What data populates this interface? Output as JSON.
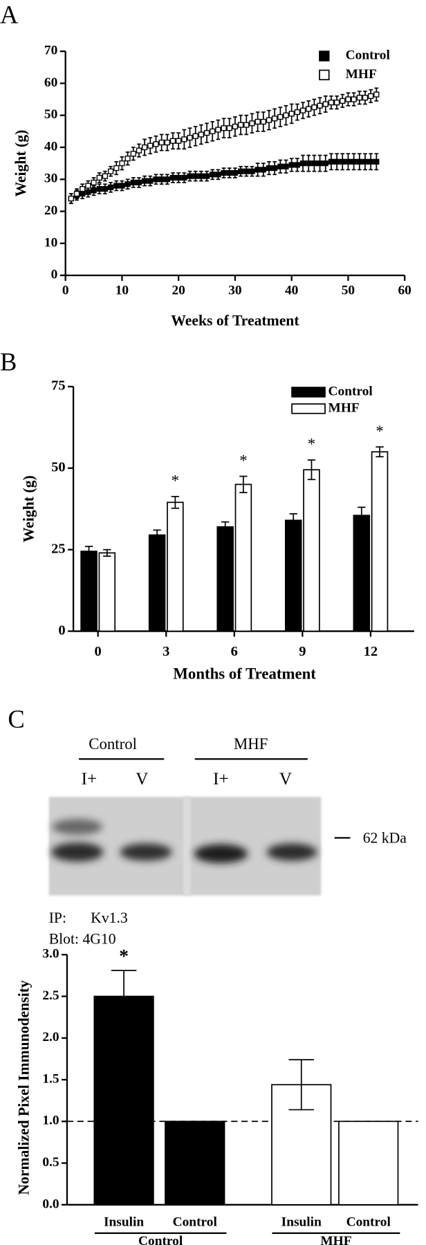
{
  "chart_data": [
    {
      "type": "scatter",
      "panel": "A",
      "x_label": "Weeks of Treatment",
      "y_label": "Weight (g)",
      "xlim": [
        0,
        60
      ],
      "xticks": [
        0,
        10,
        20,
        30,
        40,
        50,
        60
      ],
      "ylim": [
        0,
        70
      ],
      "yticks": [
        0,
        10,
        20,
        30,
        40,
        50,
        60,
        70
      ],
      "x": [
        1,
        2,
        3,
        4,
        5,
        6,
        7,
        8,
        9,
        10,
        11,
        12,
        13,
        14,
        15,
        16,
        17,
        18,
        19,
        20,
        21,
        22,
        23,
        24,
        25,
        26,
        27,
        28,
        29,
        30,
        31,
        32,
        33,
        34,
        35,
        36,
        37,
        38,
        39,
        40,
        41,
        42,
        43,
        44,
        45,
        46,
        47,
        48,
        49,
        50,
        51,
        52,
        53,
        54,
        55
      ],
      "series": [
        {
          "name": "Control",
          "color": "#000000",
          "marker_fill": "#000000",
          "values": [
            24,
            25,
            25.5,
            26,
            26.5,
            27,
            27,
            27.5,
            28,
            28,
            28.5,
            29,
            29,
            29.5,
            29.5,
            30,
            30,
            30,
            30.5,
            30.5,
            30.5,
            31,
            31,
            31,
            31,
            31.5,
            31.5,
            32,
            32,
            32,
            32.5,
            32.5,
            32.5,
            33,
            33,
            33.5,
            33.5,
            34,
            34,
            34.5,
            34.5,
            35,
            35,
            35,
            35,
            35,
            35.5,
            35.5,
            35.5,
            35.5,
            35.5,
            35.5,
            35.5,
            35.5,
            35.5
          ],
          "errors": [
            1.5,
            1.5,
            1.5,
            1.5,
            1.5,
            1.5,
            1.5,
            1.5,
            1.5,
            1.5,
            1.5,
            1.5,
            1.5,
            1.5,
            1.5,
            1.5,
            1.5,
            1.5,
            1.5,
            1.5,
            1.5,
            1.5,
            1.5,
            1.5,
            1.5,
            1.5,
            1.5,
            1.5,
            1.5,
            1.5,
            1.5,
            1.5,
            1.5,
            2,
            2,
            2,
            2,
            2,
            2,
            2,
            2,
            2.5,
            2.5,
            2.5,
            2.5,
            2.5,
            2.5,
            2.5,
            2.5,
            2.5,
            2.5,
            2.5,
            2.5,
            2.5,
            2.5
          ]
        },
        {
          "name": "MHF",
          "color": "#000000",
          "marker_fill": "#ffffff",
          "values": [
            24,
            25.5,
            27,
            28,
            29,
            30.5,
            31,
            32.5,
            33.5,
            35,
            36.5,
            38,
            39,
            40,
            40.5,
            41,
            41.5,
            41.5,
            42,
            42,
            42.5,
            43,
            43.5,
            44,
            44.5,
            45,
            45.5,
            46,
            46,
            46.5,
            47,
            47,
            47.5,
            48,
            48,
            48.5,
            49,
            49.5,
            50,
            50.5,
            51,
            51.5,
            52,
            52.5,
            53,
            53.5,
            54,
            54,
            54.5,
            55,
            55,
            55.5,
            55.5,
            56,
            56.5
          ],
          "errors": [
            1.5,
            1.5,
            1.5,
            1.5,
            1.5,
            1.5,
            1.5,
            1.5,
            2,
            2,
            2,
            2,
            2,
            2.5,
            2.5,
            2.5,
            2.5,
            2.5,
            2.5,
            2.5,
            3,
            3,
            3,
            3,
            3,
            3,
            3,
            3,
            3,
            3,
            3,
            3,
            3,
            3,
            3,
            3,
            3,
            3,
            3,
            3,
            2.5,
            2.5,
            2.5,
            2.5,
            2.5,
            2.5,
            2,
            2,
            2,
            2,
            2,
            2,
            2,
            2,
            2
          ]
        }
      ],
      "legend": "top-right"
    },
    {
      "type": "bar",
      "panel": "B",
      "x_label": "Months of Treatment",
      "y_label": "Weight (g)",
      "categories": [
        "0",
        "3",
        "6",
        "9",
        "12"
      ],
      "ylim": [
        0,
        75
      ],
      "yticks": [
        0,
        25,
        50,
        75
      ],
      "series": [
        {
          "name": "Control",
          "color": "#000000",
          "values": [
            24.5,
            29.5,
            32,
            34,
            35.5
          ],
          "errors": [
            1.5,
            1.5,
            1.5,
            2,
            2.5
          ]
        },
        {
          "name": "MHF",
          "color": "#ffffff",
          "values": [
            24,
            39.5,
            45,
            49.5,
            55
          ],
          "errors": [
            1,
            1.8,
            2.5,
            3,
            1.5
          ],
          "significance": [
            null,
            "*",
            "*",
            "*",
            "*"
          ]
        }
      ],
      "legend": "top-right"
    },
    {
      "type": "grouped-bar",
      "y_label": "Normalized Pixel Immunodensity",
      "ylim": [
        0,
        3
      ],
      "yticks": [
        {
          "value": 0,
          "label": "0.0"
        },
        0.5,
        {
          "value": 1,
          "label": "1.0"
        },
        1.5,
        {
          "value": 2,
          "label": "2.0"
        },
        2.5,
        {
          "value": 3,
          "label": "3.0"
        }
      ],
      "reference_line": 1,
      "groups": [
        {
          "name": "Control",
          "color": "#000000",
          "categories": [
            "Insulin",
            "Control"
          ],
          "values": [
            2.5,
            1.0
          ],
          "errors": [
            0.31,
            0
          ],
          "significance": [
            "*",
            null
          ]
        },
        {
          "name": "MHF",
          "color": "#ffffff",
          "categories": [
            "Insulin",
            "Control"
          ],
          "values": [
            1.44,
            1.0
          ],
          "errors": [
            0.3,
            0
          ],
          "significance": [
            null,
            null
          ]
        }
      ]
    }
  ],
  "blot": {
    "panel": "C",
    "groups": [
      {
        "name": "Control",
        "lanes": [
          "I+",
          "V"
        ]
      },
      {
        "name": "MHF",
        "lanes": [
          "I+",
          "V"
        ]
      }
    ],
    "marker": "62 kDa",
    "ip_label": "IP:",
    "ip_target": "Kv1.3",
    "blot_label": "Blot: 4G10"
  }
}
